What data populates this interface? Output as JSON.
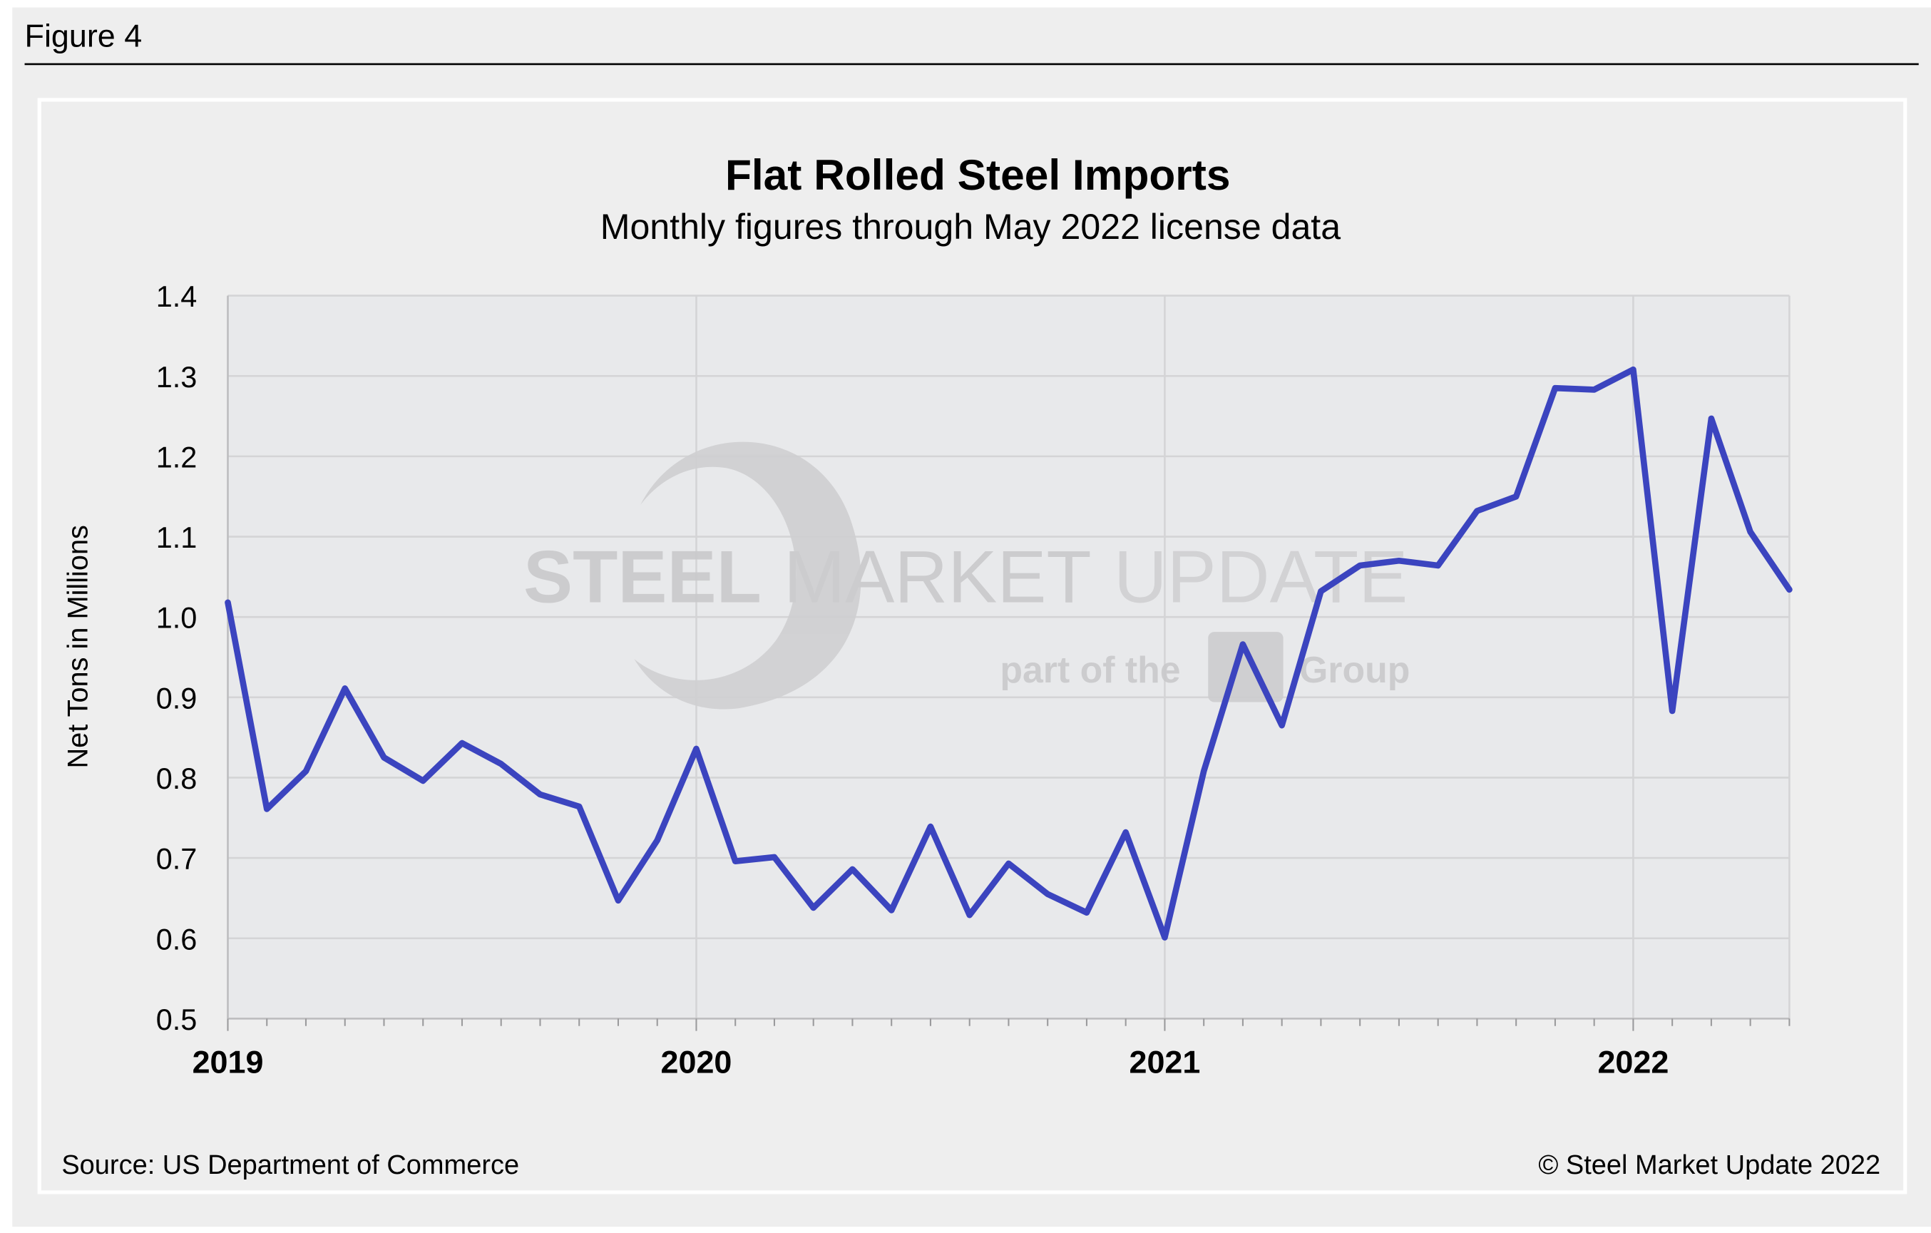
{
  "figure_label": "Figure 4",
  "watermark": {
    "brand": "STEEL MARKET UPDATE",
    "brand_bold": "STEEL",
    "brand_mid": "MARKET",
    "brand_light": "UPDATE",
    "tagline_pre": "part of the",
    "tagline_post": "Group"
  },
  "footer": {
    "source": "Source: US Department of Commerce",
    "copyright": "© Steel Market Update 2022"
  },
  "colors": {
    "line": "#3b44bf",
    "plot_bg": "#e8e9eb",
    "panel_bg": "#eeeeee",
    "grid": "#d4d4d6"
  },
  "chart_data": {
    "type": "line",
    "title": "Flat Rolled Steel Imports",
    "subtitle": "Monthly figures through May 2022 license data",
    "xlabel": "",
    "ylabel": "Net Tons in Millions",
    "ylim": [
      0.5,
      1.4
    ],
    "yticks": [
      "0.5",
      "0.6",
      "0.7",
      "0.8",
      "0.9",
      "1.0",
      "1.1",
      "1.2",
      "1.3",
      "1.4"
    ],
    "xticks": [
      "2019",
      "2020",
      "2021",
      "2022"
    ],
    "grid": true,
    "x": [
      "2019-01",
      "2019-02",
      "2019-03",
      "2019-04",
      "2019-05",
      "2019-06",
      "2019-07",
      "2019-08",
      "2019-09",
      "2019-10",
      "2019-11",
      "2019-12",
      "2020-01",
      "2020-02",
      "2020-03",
      "2020-04",
      "2020-05",
      "2020-06",
      "2020-07",
      "2020-08",
      "2020-09",
      "2020-10",
      "2020-11",
      "2020-12",
      "2021-01",
      "2021-02",
      "2021-03",
      "2021-04",
      "2021-05",
      "2021-06",
      "2021-07",
      "2021-08",
      "2021-09",
      "2021-10",
      "2021-11",
      "2021-12",
      "2022-01",
      "2022-02",
      "2022-03",
      "2022-04",
      "2022-05"
    ],
    "values": [
      1.018,
      0.761,
      0.808,
      0.911,
      0.825,
      0.796,
      0.843,
      0.817,
      0.779,
      0.764,
      0.647,
      0.722,
      0.836,
      0.696,
      0.701,
      0.638,
      0.686,
      0.635,
      0.739,
      0.629,
      0.693,
      0.655,
      0.632,
      0.732,
      0.601,
      0.808,
      0.966,
      0.865,
      1.032,
      1.064,
      1.07,
      1.064,
      1.132,
      1.15,
      1.285,
      1.283,
      1.308,
      0.883,
      1.247,
      1.106,
      1.034
    ]
  }
}
